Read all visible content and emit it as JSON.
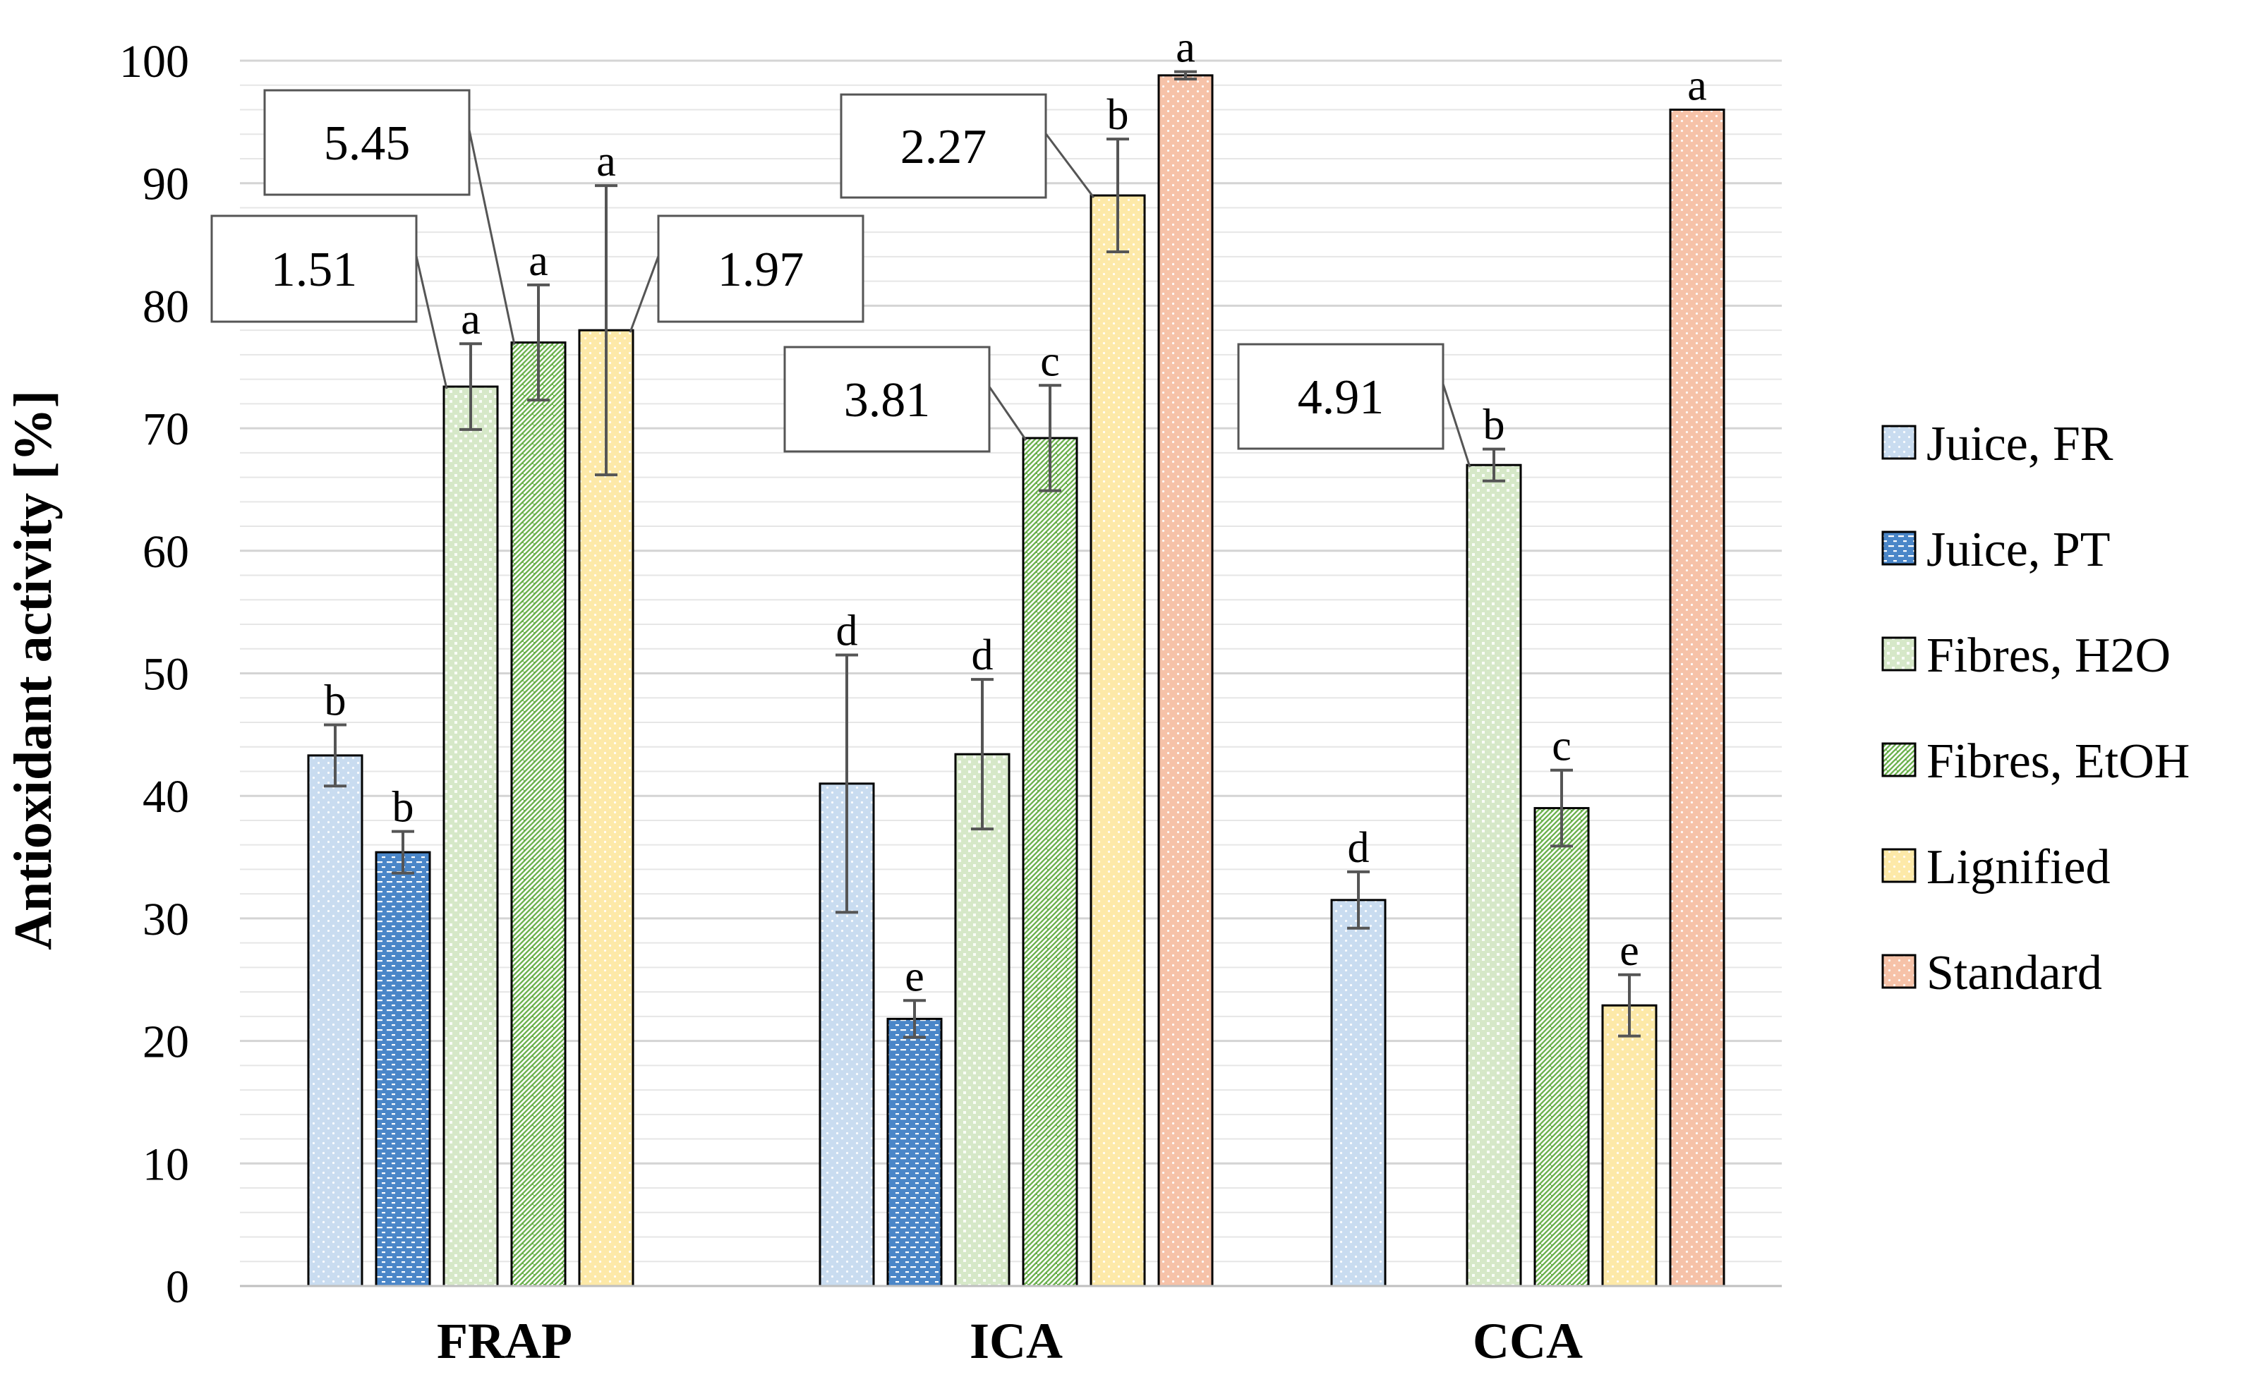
{
  "chart_data": {
    "type": "bar",
    "ylabel": "Antioxidant activity [%]",
    "xlabel": "",
    "ylim": [
      0,
      100
    ],
    "ytick_step": 10,
    "grid": true,
    "legend_position": "right",
    "categories": [
      "FRAP",
      "ICA",
      "CCA"
    ],
    "series": [
      {
        "name": "Juice, FR",
        "color": "#c9dcf0",
        "pattern": "dots",
        "values": [
          43.3,
          41.0,
          31.5
        ],
        "errors": [
          2.5,
          10.5,
          2.3
        ],
        "letters": [
          "b",
          "d",
          "d"
        ]
      },
      {
        "name": "Juice, PT",
        "color": "#4a86c8",
        "pattern": "dashes",
        "values": [
          35.4,
          21.8,
          null
        ],
        "errors": [
          1.7,
          1.5,
          null
        ],
        "letters": [
          "b",
          "e",
          null
        ]
      },
      {
        "name": "Fibres, H2O",
        "color": "#d6e8c8",
        "pattern": "checks",
        "values": [
          73.4,
          43.4,
          67.0
        ],
        "errors": [
          3.5,
          6.1,
          1.3
        ],
        "letters": [
          "a",
          "d",
          "b"
        ]
      },
      {
        "name": "Fibres, EtOH",
        "color": "#6ab04c",
        "pattern": "stripes",
        "values": [
          77.0,
          69.2,
          39.0
        ],
        "errors": [
          4.7,
          4.3,
          3.1
        ],
        "letters": [
          "a",
          "c",
          "c"
        ]
      },
      {
        "name": "Lignified",
        "color": "#fde9a8",
        "pattern": "dots",
        "values": [
          78.0,
          89.0,
          22.9
        ],
        "errors": [
          11.8,
          4.6,
          2.5
        ],
        "letters": [
          "a",
          "b",
          "e"
        ]
      },
      {
        "name": "Standard",
        "color": "#f6c2a8",
        "pattern": "dots",
        "values": [
          null,
          98.8,
          96.0
        ],
        "errors": [
          null,
          0.3,
          null
        ],
        "letters": [
          null,
          "a",
          "a"
        ]
      }
    ],
    "annotations": [
      {
        "text": "1.51",
        "series": 2,
        "category": 0
      },
      {
        "text": "5.45",
        "series": 3,
        "category": 0
      },
      {
        "text": "1.97",
        "series": 4,
        "category": 0
      },
      {
        "text": "3.81",
        "series": 3,
        "category": 1
      },
      {
        "text": "2.27",
        "series": 4,
        "category": 1
      },
      {
        "text": "4.91",
        "series": 2,
        "category": 2
      }
    ]
  }
}
